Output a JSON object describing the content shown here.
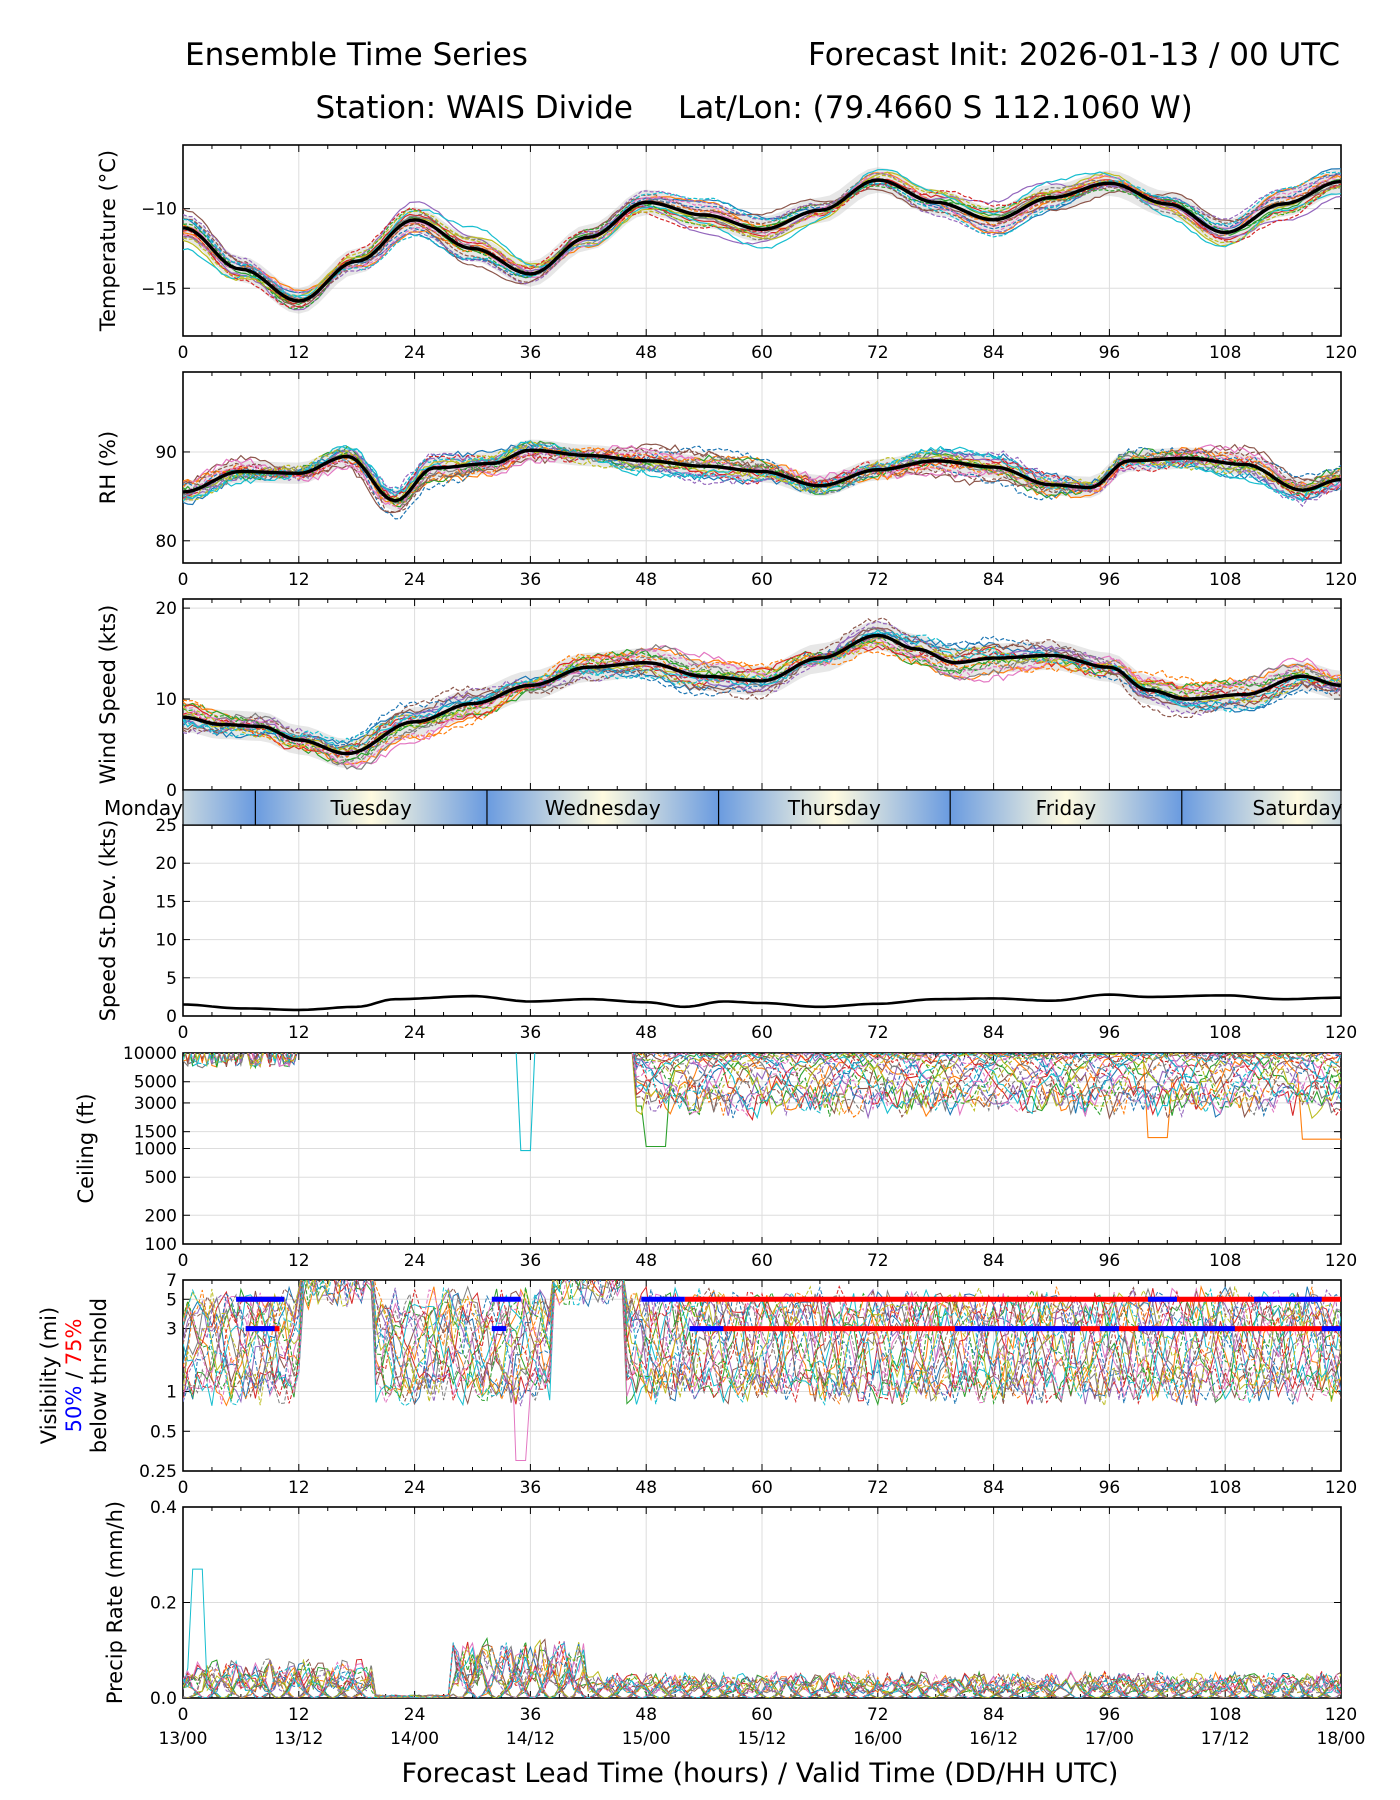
{
  "header": {
    "title_left": "Ensemble Time Series",
    "title_right": "Forecast Init: 2026-01-13 / 00 UTC",
    "station": "Station: WAIS Divide",
    "latlon": "Lat/Lon: (79.4660 S 112.1060 W)"
  },
  "colors": {
    "members": [
      "#1f77b4",
      "#ff7f0e",
      "#2ca02c",
      "#d62728",
      "#9467bd",
      "#8c564b",
      "#e377c2",
      "#7f7f7f",
      "#bcbd22",
      "#17becf"
    ],
    "mean": "#000000",
    "spread": "#bbbbbb",
    "grid": "#dddddd",
    "day_band_mid": "#fffbe0",
    "day_band_edge": "#6a9be0",
    "vis_50": "#0000ff",
    "vis_75": "#ff0000"
  },
  "chart_data": [
    {
      "type": "line",
      "name": "temperature",
      "ylabel": "Temperature (°C)",
      "xlim": [
        0,
        120
      ],
      "ylim": [
        -18,
        -6
      ],
      "yticks": [
        -15,
        -10
      ],
      "xticks": [
        0,
        12,
        24,
        36,
        48,
        60,
        72,
        84,
        96,
        108,
        120
      ],
      "mean": {
        "x": [
          0,
          6,
          12,
          18,
          24,
          30,
          36,
          42,
          48,
          54,
          60,
          66,
          72,
          78,
          84,
          90,
          96,
          102,
          108,
          114,
          120
        ],
        "y": [
          -11.2,
          -13.8,
          -15.8,
          -13.3,
          -10.7,
          -12.5,
          -14.1,
          -11.8,
          -9.6,
          -10.4,
          -11.3,
          -10.1,
          -8.2,
          -9.6,
          -10.7,
          -9.3,
          -8.4,
          -9.7,
          -11.5,
          -9.7,
          -8.3
        ]
      }
    },
    {
      "type": "line",
      "name": "rh",
      "ylabel": "RH (%)",
      "xlim": [
        0,
        120
      ],
      "ylim": [
        77.5,
        99
      ],
      "yticks": [
        80,
        90
      ],
      "xticks": [
        0,
        12,
        24,
        36,
        48,
        60,
        72,
        84,
        96,
        108,
        120
      ],
      "mean": {
        "x": [
          0,
          6,
          12,
          17,
          22,
          26,
          32,
          36,
          42,
          48,
          54,
          60,
          66,
          72,
          78,
          84,
          90,
          94,
          98,
          104,
          110,
          116,
          120
        ],
        "y": [
          85.5,
          87.8,
          87.6,
          89.5,
          84.5,
          88.2,
          88.7,
          90.2,
          89.6,
          89.0,
          88.4,
          87.8,
          86.2,
          88.0,
          89.0,
          88.3,
          86.3,
          86.0,
          89.0,
          89.3,
          88.6,
          85.7,
          86.9
        ]
      }
    },
    {
      "type": "line",
      "name": "wind_speed",
      "ylabel": "Wind Speed (kts)",
      "xlim": [
        0,
        120
      ],
      "ylim": [
        0,
        21
      ],
      "yticks": [
        0,
        10,
        20
      ],
      "xticks": [
        0,
        12,
        24,
        36,
        48,
        60,
        72,
        84,
        96,
        108,
        120
      ],
      "mean": {
        "x": [
          0,
          4,
          8,
          12,
          17,
          24,
          30,
          36,
          42,
          48,
          54,
          60,
          66,
          72,
          76,
          80,
          84,
          90,
          96,
          100,
          104,
          110,
          116,
          120
        ],
        "y": [
          8.0,
          7.2,
          7.0,
          5.5,
          4.0,
          7.5,
          9.5,
          11.5,
          13.5,
          14.0,
          12.5,
          12.0,
          14.5,
          17.0,
          15.5,
          14.0,
          14.5,
          14.8,
          13.5,
          11.0,
          10.0,
          10.5,
          12.5,
          11.5
        ]
      }
    },
    {
      "type": "line",
      "name": "speed_stdev",
      "ylabel": "Speed St.Dev. (kts)",
      "xlim": [
        0,
        120
      ],
      "ylim": [
        0,
        25
      ],
      "yticks": [
        0,
        5,
        10,
        15,
        20,
        25
      ],
      "xticks": [
        0,
        12,
        24,
        36,
        48,
        60,
        72,
        84,
        96,
        108,
        120
      ],
      "mean": {
        "x": [
          0,
          6,
          12,
          18,
          22,
          30,
          36,
          42,
          48,
          52,
          56,
          60,
          66,
          72,
          78,
          84,
          90,
          96,
          100,
          108,
          114,
          120
        ],
        "y": [
          1.5,
          1.0,
          0.8,
          1.2,
          2.2,
          2.6,
          1.9,
          2.2,
          1.8,
          1.2,
          1.9,
          1.7,
          1.2,
          1.6,
          2.2,
          2.3,
          2.0,
          2.8,
          2.5,
          2.7,
          2.2,
          2.4
        ]
      }
    },
    {
      "type": "line",
      "name": "ceiling",
      "ylabel": "Ceiling (ft)",
      "scale": "log",
      "xlim": [
        0,
        120
      ],
      "ylim": [
        100,
        10000
      ],
      "yticks": [
        100,
        200,
        500,
        1000,
        1500,
        3000,
        5000,
        10000
      ],
      "xticks": [
        0,
        12,
        24,
        36,
        48,
        60,
        72,
        84,
        96,
        108,
        120
      ]
    },
    {
      "type": "line",
      "name": "visibility",
      "ylabel": "Visibility (mi)",
      "ylabel_50": "50%",
      "ylabel_sep": "/",
      "ylabel_75": "75%",
      "ylabel_below": "below thrshold",
      "scale": "log",
      "xlim": [
        0,
        120
      ],
      "ylim": [
        0.25,
        7
      ],
      "yticks": [
        0.25,
        0.5,
        1,
        3,
        5,
        7
      ],
      "xticks": [
        0,
        12,
        24,
        36,
        48,
        60,
        72,
        84,
        96,
        108,
        120
      ],
      "threshold_bars": [
        {
          "level": 5,
          "pct": 75,
          "ranges": [
            [
              6,
              10
            ],
            [
              52,
              120
            ]
          ]
        },
        {
          "level": 5,
          "pct": 50,
          "ranges": [
            [
              5.5,
              10.5
            ],
            [
              32,
              35
            ],
            [
              47.5,
              52
            ],
            [
              100,
              103
            ],
            [
              111,
              118
            ]
          ]
        },
        {
          "level": 3,
          "pct": 75,
          "ranges": [
            [
              6.5,
              10
            ],
            [
              52.5,
              120
            ]
          ]
        },
        {
          "level": 3,
          "pct": 50,
          "ranges": [
            [
              6.5,
              9.5
            ],
            [
              32,
              33.5
            ],
            [
              52.5,
              56
            ],
            [
              80,
              93
            ],
            [
              95,
              97
            ],
            [
              99,
              109
            ],
            [
              118,
              120
            ]
          ]
        }
      ]
    },
    {
      "type": "line",
      "name": "precip_rate",
      "ylabel": "Precip Rate (mm/h)",
      "xlim": [
        0,
        120
      ],
      "ylim": [
        0,
        0.4
      ],
      "yticks": [
        0.0,
        0.2,
        0.4
      ],
      "xticks": [
        0,
        12,
        24,
        36,
        48,
        60,
        72,
        84,
        96,
        108,
        120
      ],
      "xtick_valid": [
        "13/00",
        "13/12",
        "14/00",
        "14/12",
        "15/00",
        "15/12",
        "16/00",
        "16/12",
        "17/00",
        "17/12",
        "18/00"
      ],
      "xlabel": "Forecast Lead Time (hours) / Valid Time (DD/HH UTC)"
    }
  ],
  "day_band": {
    "labels": [
      "Monday",
      "Tuesday",
      "Wednesday",
      "Thursday",
      "Friday",
      "Saturday"
    ],
    "boundaries_h": [
      7.5,
      31.5,
      55.5,
      79.5,
      103.5
    ]
  }
}
